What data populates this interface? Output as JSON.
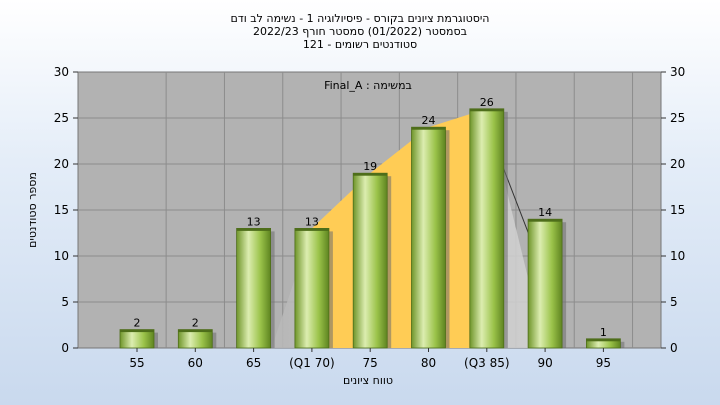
{
  "chart_data": {
    "type": "bar",
    "title_lines": [
      "היסטוגרמת ציונים בקורס - פיסיולוגיה 1 - נשימה לב ודם",
      "בסמסטר  (01/2022)  סמסטר חורף 2022/23",
      "סטודנטים רשומים - 121"
    ],
    "annotation": "Final_A : במשימה",
    "categories": [
      "55",
      "60",
      "65",
      "(Q1 70)",
      "75",
      "80",
      "(Q3 85)",
      "90",
      "95"
    ],
    "values": [
      2,
      2,
      13,
      13,
      19,
      24,
      26,
      14,
      1
    ],
    "xlabel": "טווח ציונים",
    "ylabel": "מספר סטודנטים",
    "ylim": [
      0,
      30
    ],
    "yticks": [
      0,
      5,
      10,
      15,
      20,
      25,
      30
    ],
    "grid": true,
    "background_shading": "quartile-range area from Q1 70 to Q3 85",
    "colors": {
      "bar_light": "#dcedb0",
      "bar_mid": "#9bc34a",
      "bar_dark": "#5e8420",
      "plot_bg": "#b2b2b2",
      "quartile_fill": "#ffcc55"
    }
  }
}
